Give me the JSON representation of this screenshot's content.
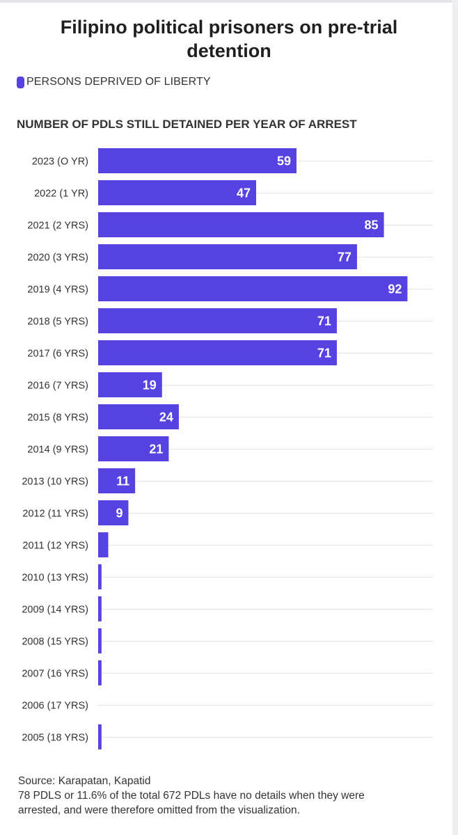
{
  "title": "Filipino political prisoners on pre-trial detention",
  "legend": {
    "label": "PERSONS DEPRIVED OF LIBERTY",
    "color": "#5542e0"
  },
  "chart_data": {
    "type": "bar",
    "orientation": "horizontal",
    "title": "Filipino political prisoners on pre-trial detention",
    "subtitle": "NUMBER OF PDLS STILL DETAINED PER YEAR OF ARREST",
    "categories": [
      "2023 (O YR)",
      "2022 (1 YR)",
      "2021 (2 YRS)",
      "2020 (3 YRS)",
      "2019 (4 YRS)",
      "2018 (5 YRS)",
      "2017 (6 YRS)",
      "2016 (7 YRS)",
      "2015 (8 YRS)",
      "2014 (9 YRS)",
      "2013 (10 YRS)",
      "2012 (11 YRS)",
      "2011 (12 YRS)",
      "2010 (13 YRS)",
      "2009 (14 YRS)",
      "2008 (15 YRS)",
      "2007 (16 YRS)",
      "2006 (17 YRS)",
      "2005 (18 YRS)"
    ],
    "series": [
      {
        "name": "PERSONS DEPRIVED OF LIBERTY",
        "values": [
          59,
          47,
          85,
          77,
          92,
          71,
          71,
          19,
          24,
          21,
          11,
          9,
          3,
          1,
          1,
          1,
          1,
          0,
          1
        ]
      }
    ],
    "data_labels": [
      "59",
      "47",
      "85",
      "77",
      "92",
      "71",
      "71",
      "19",
      "24",
      "21",
      "11",
      "9",
      "",
      "",
      "",
      "",
      "",
      "",
      ""
    ],
    "xlim": [
      0,
      100
    ],
    "grid": true,
    "legend_position": "top-left",
    "bar_color": "#5542e0"
  },
  "source": {
    "line1": "Source: Karapatan, Kapatid",
    "line2": "78 PDLS or 11.6% of the total 672 PDLs have no details when they were",
    "line3": "arrested, and were therefore omitted from the visualization."
  }
}
